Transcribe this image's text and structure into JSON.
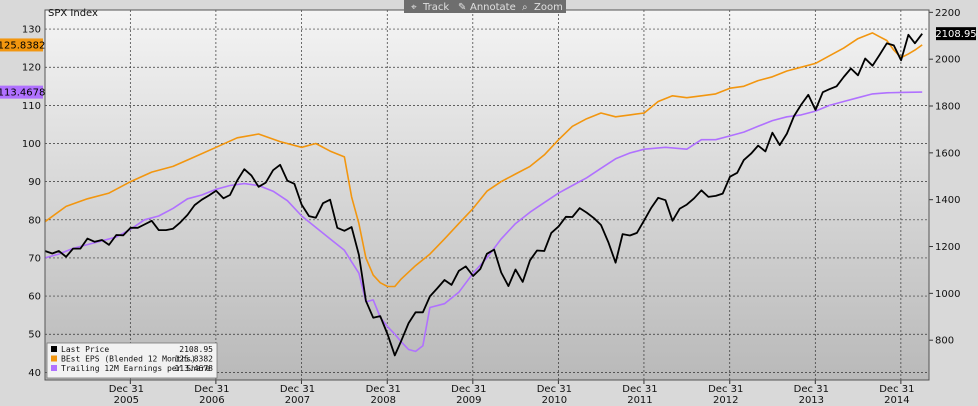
{
  "toolbar": {
    "track": "Track",
    "annotate": "Annotate",
    "zoom": "Zoom"
  },
  "colors": {
    "last_price": "#000000",
    "best_eps": "#f2960f",
    "trailing_eps": "#b071ff",
    "plot_bg_top": "#f4f4f4",
    "plot_bg_bottom": "#b9b9b9",
    "toolbar_bg": "#6e6e6e"
  },
  "chart_data": {
    "type": "line",
    "title": "SPX Index",
    "x_range": [
      "2005-01-01",
      "2015-04-30"
    ],
    "left_axis": {
      "range": [
        38,
        135
      ],
      "ticks": [
        40,
        50,
        60,
        70,
        80,
        90,
        100,
        110,
        120,
        130
      ]
    },
    "right_axis": {
      "range": [
        630,
        2210
      ],
      "ticks": [
        800,
        1000,
        1200,
        1400,
        1600,
        1800,
        2000,
        2200
      ]
    },
    "x_ticks": [
      {
        "date": "2005-12-31",
        "line1": "Dec 31",
        "line2": "2005"
      },
      {
        "date": "2006-12-31",
        "line1": "Dec 31",
        "line2": "2006"
      },
      {
        "date": "2007-12-31",
        "line1": "Dec 31",
        "line2": "2007"
      },
      {
        "date": "2008-12-31",
        "line1": "Dec 31",
        "line2": "2008"
      },
      {
        "date": "2009-12-31",
        "line1": "Dec 31",
        "line2": "2009"
      },
      {
        "date": "2010-12-31",
        "line1": "Dec 31",
        "line2": "2010"
      },
      {
        "date": "2011-12-31",
        "line1": "Dec 31",
        "line2": "2011"
      },
      {
        "date": "2012-12-31",
        "line1": "Dec 31",
        "line2": "2012"
      },
      {
        "date": "2013-12-31",
        "line1": "Dec 31",
        "line2": "2013"
      },
      {
        "date": "2014-12-31",
        "line1": "Dec 31",
        "line2": "2014"
      }
    ],
    "grid": true,
    "legend_placement": "bottom-left",
    "series": [
      {
        "name": "Last Price",
        "legend_value": "2108.95",
        "axis": "right",
        "badge": "2108.95",
        "color_key": "last_price",
        "points": [
          [
            "2005-01-01",
            1181
          ],
          [
            "2005-02-01",
            1170
          ],
          [
            "2005-03-01",
            1181
          ],
          [
            "2005-04-01",
            1156
          ],
          [
            "2005-05-01",
            1191
          ],
          [
            "2005-06-01",
            1191
          ],
          [
            "2005-07-01",
            1234
          ],
          [
            "2005-08-01",
            1220
          ],
          [
            "2005-09-01",
            1228
          ],
          [
            "2005-10-01",
            1207
          ],
          [
            "2005-11-01",
            1249
          ],
          [
            "2005-12-01",
            1248
          ],
          [
            "2006-01-01",
            1280
          ],
          [
            "2006-02-01",
            1280
          ],
          [
            "2006-03-01",
            1294
          ],
          [
            "2006-04-01",
            1310
          ],
          [
            "2006-05-01",
            1270
          ],
          [
            "2006-06-01",
            1270
          ],
          [
            "2006-07-01",
            1276
          ],
          [
            "2006-08-01",
            1303
          ],
          [
            "2006-09-01",
            1335
          ],
          [
            "2006-10-01",
            1377
          ],
          [
            "2006-11-01",
            1400
          ],
          [
            "2006-12-01",
            1418
          ],
          [
            "2007-01-01",
            1438
          ],
          [
            "2007-02-01",
            1406
          ],
          [
            "2007-03-01",
            1420
          ],
          [
            "2007-04-01",
            1482
          ],
          [
            "2007-05-01",
            1530
          ],
          [
            "2007-06-01",
            1503
          ],
          [
            "2007-07-01",
            1455
          ],
          [
            "2007-08-01",
            1473
          ],
          [
            "2007-09-01",
            1526
          ],
          [
            "2007-10-01",
            1549
          ],
          [
            "2007-11-01",
            1481
          ],
          [
            "2007-12-01",
            1468
          ],
          [
            "2008-01-01",
            1378
          ],
          [
            "2008-02-01",
            1330
          ],
          [
            "2008-03-01",
            1323
          ],
          [
            "2008-04-01",
            1385
          ],
          [
            "2008-05-01",
            1400
          ],
          [
            "2008-06-01",
            1280
          ],
          [
            "2008-07-01",
            1267
          ],
          [
            "2008-08-01",
            1283
          ],
          [
            "2008-09-01",
            1164
          ],
          [
            "2008-10-01",
            968
          ],
          [
            "2008-11-01",
            896
          ],
          [
            "2008-12-01",
            903
          ],
          [
            "2009-01-01",
            826
          ],
          [
            "2009-02-01",
            735
          ],
          [
            "2009-03-01",
            798
          ],
          [
            "2009-04-01",
            873
          ],
          [
            "2009-05-01",
            919
          ],
          [
            "2009-06-01",
            919
          ],
          [
            "2009-07-01",
            987
          ],
          [
            "2009-08-01",
            1021
          ],
          [
            "2009-09-01",
            1057
          ],
          [
            "2009-10-01",
            1036
          ],
          [
            "2009-11-01",
            1096
          ],
          [
            "2009-12-01",
            1115
          ],
          [
            "2010-01-01",
            1074
          ],
          [
            "2010-02-01",
            1104
          ],
          [
            "2010-03-01",
            1169
          ],
          [
            "2010-04-01",
            1187
          ],
          [
            "2010-05-01",
            1089
          ],
          [
            "2010-06-01",
            1031
          ],
          [
            "2010-07-01",
            1102
          ],
          [
            "2010-08-01",
            1049
          ],
          [
            "2010-09-01",
            1141
          ],
          [
            "2010-10-01",
            1183
          ],
          [
            "2010-11-01",
            1181
          ],
          [
            "2010-12-01",
            1258
          ],
          [
            "2011-01-01",
            1286
          ],
          [
            "2011-02-01",
            1327
          ],
          [
            "2011-03-01",
            1326
          ],
          [
            "2011-04-01",
            1364
          ],
          [
            "2011-05-01",
            1345
          ],
          [
            "2011-06-01",
            1321
          ],
          [
            "2011-07-01",
            1292
          ],
          [
            "2011-08-01",
            1219
          ],
          [
            "2011-09-01",
            1131
          ],
          [
            "2011-10-01",
            1253
          ],
          [
            "2011-11-01",
            1247
          ],
          [
            "2011-12-01",
            1258
          ],
          [
            "2012-01-01",
            1312
          ],
          [
            "2012-02-01",
            1366
          ],
          [
            "2012-03-01",
            1408
          ],
          [
            "2012-04-01",
            1398
          ],
          [
            "2012-05-01",
            1310
          ],
          [
            "2012-06-01",
            1362
          ],
          [
            "2012-07-01",
            1379
          ],
          [
            "2012-08-01",
            1406
          ],
          [
            "2012-09-01",
            1440
          ],
          [
            "2012-10-01",
            1412
          ],
          [
            "2012-11-01",
            1416
          ],
          [
            "2012-12-01",
            1426
          ],
          [
            "2013-01-01",
            1498
          ],
          [
            "2013-02-01",
            1515
          ],
          [
            "2013-03-01",
            1569
          ],
          [
            "2013-04-01",
            1597
          ],
          [
            "2013-05-01",
            1631
          ],
          [
            "2013-06-01",
            1606
          ],
          [
            "2013-07-01",
            1686
          ],
          [
            "2013-08-01",
            1633
          ],
          [
            "2013-09-01",
            1682
          ],
          [
            "2013-10-01",
            1757
          ],
          [
            "2013-11-01",
            1806
          ],
          [
            "2013-12-01",
            1848
          ],
          [
            "2014-01-01",
            1783
          ],
          [
            "2014-02-01",
            1859
          ],
          [
            "2014-03-01",
            1872
          ],
          [
            "2014-04-01",
            1884
          ],
          [
            "2014-05-01",
            1924
          ],
          [
            "2014-06-01",
            1960
          ],
          [
            "2014-07-01",
            1931
          ],
          [
            "2014-08-01",
            2003
          ],
          [
            "2014-09-01",
            1972
          ],
          [
            "2014-10-01",
            2018
          ],
          [
            "2014-11-01",
            2068
          ],
          [
            "2014-12-01",
            2059
          ],
          [
            "2015-01-01",
            1995
          ],
          [
            "2015-02-01",
            2104
          ],
          [
            "2015-03-01",
            2068
          ],
          [
            "2015-04-01",
            2108.95
          ]
        ]
      },
      {
        "name": "BEst EPS (Blended 12 Months)",
        "legend_value": "125.8382",
        "axis": "left",
        "badge": "125.8382",
        "color_key": "best_eps",
        "points": [
          [
            "2005-01-01",
            79.5
          ],
          [
            "2005-04-01",
            83.5
          ],
          [
            "2005-07-01",
            85.5
          ],
          [
            "2005-10-01",
            87
          ],
          [
            "2006-01-01",
            90
          ],
          [
            "2006-04-01",
            92.5
          ],
          [
            "2006-07-01",
            94
          ],
          [
            "2006-10-01",
            96.5
          ],
          [
            "2007-01-01",
            99
          ],
          [
            "2007-04-01",
            101.5
          ],
          [
            "2007-07-01",
            102.5
          ],
          [
            "2007-10-01",
            100.5
          ],
          [
            "2008-01-01",
            99
          ],
          [
            "2008-03-01",
            100
          ],
          [
            "2008-05-01",
            98
          ],
          [
            "2008-07-01",
            96.5
          ],
          [
            "2008-08-01",
            86
          ],
          [
            "2008-09-01",
            79
          ],
          [
            "2008-10-01",
            70
          ],
          [
            "2008-11-01",
            65.5
          ],
          [
            "2008-12-01",
            63.5
          ],
          [
            "2009-01-01",
            62.5
          ],
          [
            "2009-02-01",
            62.5
          ],
          [
            "2009-03-01",
            64.5
          ],
          [
            "2009-05-01",
            68
          ],
          [
            "2009-07-01",
            71
          ],
          [
            "2009-09-01",
            75
          ],
          [
            "2009-11-01",
            79
          ],
          [
            "2010-01-01",
            83
          ],
          [
            "2010-03-01",
            87.5
          ],
          [
            "2010-05-01",
            90
          ],
          [
            "2010-07-01",
            92
          ],
          [
            "2010-09-01",
            94
          ],
          [
            "2010-11-01",
            97
          ],
          [
            "2011-01-01",
            101
          ],
          [
            "2011-03-01",
            104.5
          ],
          [
            "2011-05-01",
            106.5
          ],
          [
            "2011-07-01",
            108
          ],
          [
            "2011-09-01",
            107
          ],
          [
            "2011-11-01",
            107.5
          ],
          [
            "2012-01-01",
            108
          ],
          [
            "2012-03-01",
            111
          ],
          [
            "2012-05-01",
            112.5
          ],
          [
            "2012-07-01",
            112
          ],
          [
            "2012-09-01",
            112.5
          ],
          [
            "2012-11-01",
            113
          ],
          [
            "2013-01-01",
            114.5
          ],
          [
            "2013-03-01",
            115
          ],
          [
            "2013-05-01",
            116.5
          ],
          [
            "2013-07-01",
            117.5
          ],
          [
            "2013-09-01",
            119
          ],
          [
            "2013-11-01",
            120
          ],
          [
            "2014-01-01",
            121
          ],
          [
            "2014-03-01",
            123
          ],
          [
            "2014-05-01",
            125
          ],
          [
            "2014-07-01",
            127.5
          ],
          [
            "2014-09-01",
            129
          ],
          [
            "2014-10-01",
            128
          ],
          [
            "2014-11-01",
            127
          ],
          [
            "2014-12-01",
            124.5
          ],
          [
            "2015-01-01",
            122.5
          ],
          [
            "2015-02-01",
            123.5
          ],
          [
            "2015-03-01",
            124.5
          ],
          [
            "2015-04-01",
            125.8382
          ]
        ]
      },
      {
        "name": "Trailing 12M Earnings per Share",
        "legend_value": "113.4678",
        "axis": "left",
        "badge": "113.4678",
        "color_key": "trailing_eps",
        "points": [
          [
            "2005-01-01",
            70
          ],
          [
            "2005-03-01",
            71
          ],
          [
            "2005-05-01",
            72.5
          ],
          [
            "2005-07-01",
            73.5
          ],
          [
            "2005-09-01",
            74.5
          ],
          [
            "2005-11-01",
            75.5
          ],
          [
            "2006-01-01",
            77.5
          ],
          [
            "2006-03-01",
            80
          ],
          [
            "2006-05-01",
            81
          ],
          [
            "2006-07-01",
            83
          ],
          [
            "2006-09-01",
            85.5
          ],
          [
            "2006-11-01",
            86.5
          ],
          [
            "2007-01-01",
            88
          ],
          [
            "2007-03-01",
            89
          ],
          [
            "2007-05-01",
            89.5
          ],
          [
            "2007-07-01",
            89
          ],
          [
            "2007-09-01",
            87.5
          ],
          [
            "2007-11-01",
            85
          ],
          [
            "2008-01-01",
            81
          ],
          [
            "2008-03-01",
            78
          ],
          [
            "2008-05-01",
            75
          ],
          [
            "2008-07-01",
            72
          ],
          [
            "2008-08-01",
            69
          ],
          [
            "2008-09-01",
            66
          ],
          [
            "2008-10-01",
            58.5
          ],
          [
            "2008-11-01",
            59
          ],
          [
            "2008-12-01",
            54.5
          ],
          [
            "2009-01-01",
            52
          ],
          [
            "2009-02-01",
            50
          ],
          [
            "2009-03-01",
            48
          ],
          [
            "2009-04-01",
            46
          ],
          [
            "2009-05-01",
            45.5
          ],
          [
            "2009-06-01",
            47
          ],
          [
            "2009-07-01",
            57
          ],
          [
            "2009-09-01",
            58
          ],
          [
            "2009-11-01",
            61
          ],
          [
            "2010-01-01",
            66
          ],
          [
            "2010-03-01",
            70
          ],
          [
            "2010-05-01",
            75
          ],
          [
            "2010-07-01",
            79
          ],
          [
            "2010-09-01",
            82
          ],
          [
            "2010-11-01",
            84.5
          ],
          [
            "2011-01-01",
            87
          ],
          [
            "2011-03-01",
            89
          ],
          [
            "2011-05-01",
            91
          ],
          [
            "2011-07-01",
            93.5
          ],
          [
            "2011-09-01",
            96
          ],
          [
            "2011-11-01",
            97.5
          ],
          [
            "2012-01-01",
            98.5
          ],
          [
            "2012-04-01",
            99
          ],
          [
            "2012-07-01",
            98.5
          ],
          [
            "2012-09-01",
            101
          ],
          [
            "2012-11-01",
            101
          ],
          [
            "2013-01-01",
            102
          ],
          [
            "2013-03-01",
            103
          ],
          [
            "2013-05-01",
            104.5
          ],
          [
            "2013-07-01",
            106
          ],
          [
            "2013-09-01",
            107
          ],
          [
            "2013-11-01",
            107.5
          ],
          [
            "2014-01-01",
            108.5
          ],
          [
            "2014-03-01",
            110
          ],
          [
            "2014-05-01",
            111
          ],
          [
            "2014-07-01",
            112
          ],
          [
            "2014-09-01",
            113
          ],
          [
            "2014-11-01",
            113.3
          ],
          [
            "2015-01-01",
            113.4
          ],
          [
            "2015-04-01",
            113.4678
          ]
        ]
      }
    ]
  }
}
